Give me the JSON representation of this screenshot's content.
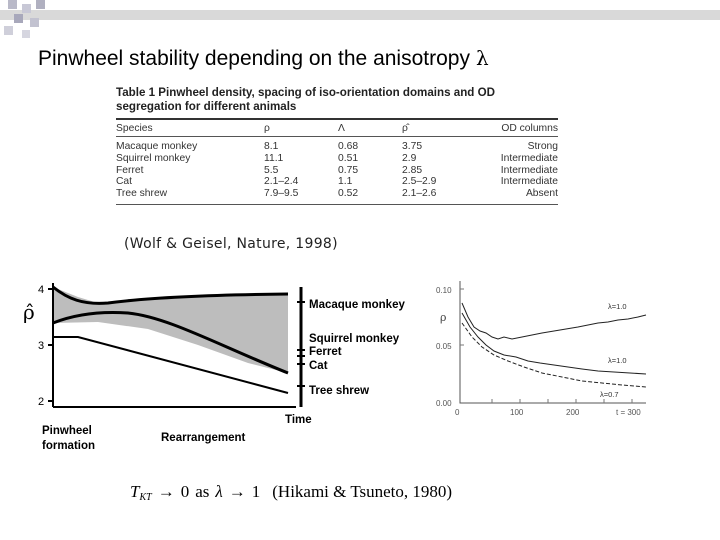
{
  "slide": {
    "title": "Pinwheel stability depending on the anisotropy",
    "title_symbol": "λ"
  },
  "table": {
    "caption_line1": "Table 1 Pinwheel density, spacing of iso-orientation domains and OD",
    "caption_line2": "segregation for different animals",
    "headers": [
      "Species",
      "ρ",
      "Λ",
      "ρ̂",
      "OD columns"
    ],
    "rows": [
      [
        "Macaque monkey",
        "8.1",
        "0.68",
        "3.75",
        "Strong"
      ],
      [
        "Squirrel monkey",
        "11.1",
        "0.51",
        "2.9",
        "Intermediate"
      ],
      [
        "Ferret",
        "5.5",
        "0.75",
        "2.85",
        "Intermediate"
      ],
      [
        "Cat",
        "2.1–2.4",
        "1.1",
        "2.5–2.9",
        "Intermediate"
      ],
      [
        "Tree shrew",
        "7.9–9.5",
        "0.52",
        "2.1–2.6",
        "Absent"
      ]
    ]
  },
  "citation": "(Wolf & Geisel, Nature, 1998)",
  "left_figure": {
    "y_symbol": "ρ̂",
    "y_ticks": [
      "4",
      "3",
      "2"
    ],
    "species_labels": [
      "Macaque monkey",
      "Squirrel monkey",
      "Ferret",
      "Cat",
      "Tree shrew"
    ],
    "x_label": "Time",
    "phase_label_1_line1": "Pinwheel",
    "phase_label_1_line2": "formation",
    "phase_label_2": "Rearrangement"
  },
  "right_figure": {
    "y_symbol": "ρ",
    "y_ticks": [
      "0.10",
      "0.05",
      "0.00"
    ],
    "x_ticks": [
      "0",
      "100",
      "200",
      "t = 300"
    ],
    "curve_labels": [
      "λ=1.0",
      "λ=1.0",
      "λ=0.7"
    ]
  },
  "formula": {
    "lhs": "T",
    "subscript": "KT",
    "arrow1": "→",
    "zero": "0",
    "as": "as",
    "lambda": "λ",
    "arrow2": "→",
    "one": "1",
    "reference": "(Hikami & Tsuneto, 1980)"
  }
}
